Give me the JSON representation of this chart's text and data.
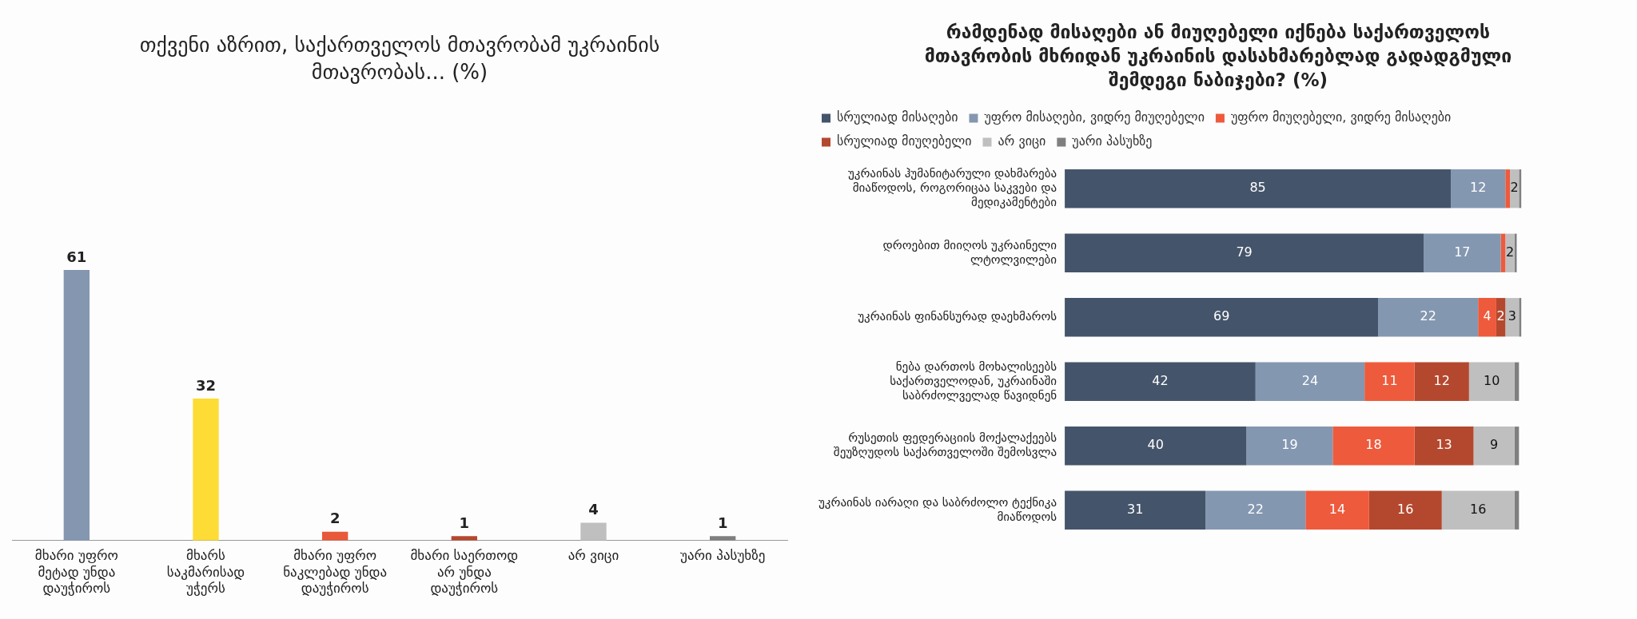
{
  "chart_data": [
    {
      "type": "bar",
      "title": "თქვენი აზრით, საქართველოს მთავრობამ უკრაინის მთავრობას... (%)",
      "categories": [
        "მხარი უფრო მეტად უნდა დაუჭიროს",
        "მხარს საკმარისად უჭერს",
        "მხარი უფრო ნაკლებად უნდა დაუჭიროს",
        "მხარი საერთოდ არ უნდა დაუჭიროს",
        "არ ვიცი",
        "უარი პასუხზე"
      ],
      "values": [
        61,
        32,
        2,
        1,
        4,
        1
      ],
      "colors": [
        "#8496b0",
        "#fddc35",
        "#e8583a",
        "#b4482e",
        "#bfbfbf",
        "#7f7f7f"
      ],
      "data_labels": true,
      "grid": false,
      "legend": false,
      "tick_labels": "x"
    },
    {
      "type": "bar",
      "orientation": "horizontal",
      "stacked": true,
      "title": "რამდენად მისაღები ან მიუღებელი იქნება საქართველოს მთავრობის მხრიდან უკრაინის დასახმარებლად გადადგმული შემდეგი ნაბიჯები? (%)",
      "categories": [
        "უკრაინას ჰუმანიტარული დახმარება მიაწოდოს, როგორიცაა საკვები და მედიკამენტები",
        "დროებით მიიღოს უკრაინელი ლტოლვილები",
        "უკრაინას ფინანსურად დაეხმაროს",
        "ნება დართოს მოხალისეებს საქართველოდან, უკრაინაში საბრძოლველად წავიდნენ",
        "რუსეთის ფედერაციის მოქალაქეებს შეუზღუდოს საქართველოში შემოსვლა",
        "უკრაინას იარაღი და საბრძოლო ტექნიკა მიაწოდოს"
      ],
      "grid": false,
      "legend": "top",
      "tick_labels": "y",
      "series": [
        {
          "name": "სრულიად მისაღები",
          "color": "#44546a",
          "values": [
            85,
            79,
            69,
            42,
            40,
            31
          ],
          "value_labels": [
            "85",
            "79",
            "69",
            "42",
            "40",
            "31"
          ]
        },
        {
          "name": "უფრო მისაღები, ვიდრე მიუღებელი",
          "color": "#8497b0",
          "values": [
            12,
            17,
            22,
            24,
            19,
            22
          ],
          "value_labels": [
            "12",
            "17",
            "22",
            "24",
            "19",
            "22"
          ]
        },
        {
          "name": "უფრო მიუღებელი, ვიდრე მისაღები",
          "color": "#ee5a3c",
          "values": [
            1,
            1,
            4,
            11,
            18,
            14
          ],
          "value_labels": [
            null,
            null,
            "4",
            "11",
            "18",
            "14"
          ]
        },
        {
          "name": "სრულიად მიუღებელი",
          "color": "#b4482e",
          "values": [
            0,
            0,
            2,
            12,
            13,
            16
          ],
          "value_labels": [
            null,
            null,
            "2",
            "12",
            "13",
            "16"
          ]
        },
        {
          "name": "არ ვიცი",
          "color": "#bfbfbf",
          "values": [
            2,
            2,
            3,
            10,
            9,
            16
          ],
          "value_labels": [
            "2",
            "2",
            "3",
            "10",
            "9",
            "16"
          ]
        },
        {
          "name": "უარი პასუხზე",
          "color": "#7f7f7f",
          "values": [
            0.5,
            0.5,
            0.5,
            1,
            1,
            1
          ],
          "value_labels": [
            null,
            null,
            null,
            null,
            null,
            null
          ]
        }
      ]
    }
  ]
}
